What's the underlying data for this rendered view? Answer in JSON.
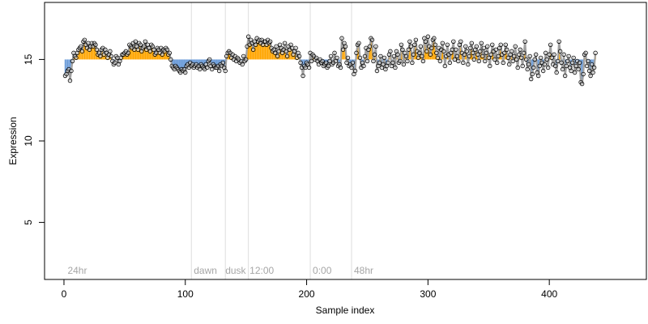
{
  "chart_data": {
    "type": "line",
    "xlabel": "Sample index",
    "ylabel": "Expression",
    "xlim": [
      -16,
      480
    ],
    "ylim": [
      1.5,
      18.5
    ],
    "xticks": [
      0,
      100,
      200,
      300,
      400
    ],
    "yticks": [
      5,
      10,
      15
    ],
    "baseline": 15,
    "grid": false,
    "legend": "none",
    "colors": {
      "above_baseline_bar": "#ffa500",
      "below_baseline_bar": "#6a9bd8",
      "line": "#a0a0a0",
      "points_stroke": "#000000",
      "points_fill": "#ffffff",
      "vline": "#dedede",
      "annotation_text": "#a6a6a6"
    },
    "vlines": [
      105,
      133,
      152,
      203,
      237
    ],
    "annotations": [
      {
        "x": 3,
        "label": "24hr"
      },
      {
        "x": 107,
        "label": "dawn"
      },
      {
        "x": 133,
        "label": "dusk"
      },
      {
        "x": 153,
        "label": "12:00"
      },
      {
        "x": 205,
        "label": "0:00"
      },
      {
        "x": 239,
        "label": "48hr"
      }
    ],
    "series": [
      {
        "values": [
          14.0,
          14.1,
          14.3,
          14.4,
          13.7,
          14.3,
          14.9,
          15.4,
          15.2,
          15.1,
          15.4,
          15.6,
          15.7,
          15.8,
          15.5,
          16.1,
          16.2,
          15.9,
          15.7,
          16.0,
          15.6,
          15.8,
          16.0,
          15.8,
          16.0,
          15.9,
          15.6,
          15.3,
          15.4,
          15.2,
          15.6,
          15.7,
          15.3,
          15.6,
          15.4,
          15.1,
          15.3,
          15.5,
          15.2,
          14.9,
          14.7,
          14.8,
          15.2,
          15.1,
          14.7,
          14.9,
          15.1,
          15.3,
          15.3,
          15.4,
          15.5,
          15.3,
          15.4,
          15.9,
          15.8,
          15.7,
          16.0,
          15.6,
          16.1,
          15.8,
          15.6,
          16.0,
          15.9,
          15.5,
          15.7,
          15.8,
          16.1,
          15.6,
          15.9,
          15.7,
          15.5,
          15.9,
          15.8,
          15.6,
          15.3,
          15.4,
          15.7,
          15.6,
          15.4,
          15.7,
          15.3,
          15.6,
          15.5,
          15.7,
          15.6,
          15.3,
          15.4,
          15.0,
          14.6,
          14.5,
          14.4,
          14.6,
          14.5,
          14.4,
          14.3,
          14.2,
          14.4,
          14.3,
          14.4,
          14.2,
          14.6,
          14.7,
          14.5,
          14.8,
          14.6,
          14.7,
          14.5,
          14.6,
          14.7,
          14.5,
          14.6,
          14.4,
          14.7,
          14.6,
          14.5,
          14.4,
          14.7,
          14.5,
          14.9,
          15.0,
          14.6,
          14.4,
          14.7,
          14.6,
          14.5,
          14.5,
          14.6,
          14.3,
          14.7,
          14.6,
          14.8,
          14.5,
          14.3,
          15.2,
          15.4,
          15.5,
          15.4,
          15.1,
          15.3,
          15.0,
          15.2,
          14.9,
          15.1,
          15.0,
          14.8,
          14.9,
          14.7,
          15.2,
          14.9,
          15.0,
          15.8,
          16.4,
          15.9,
          16.2,
          16.0,
          15.6,
          16.1,
          15.9,
          16.3,
          16.1,
          16.2,
          16.0,
          16.2,
          15.9,
          16.1,
          16.1,
          15.9,
          16.2,
          16.0,
          16.1,
          15.7,
          15.5,
          15.6,
          15.4,
          15.8,
          15.2,
          15.5,
          15.9,
          15.7,
          15.4,
          15.6,
          16.0,
          15.5,
          15.2,
          15.8,
          15.6,
          15.9,
          15.7,
          15.3,
          15.5,
          15.7,
          15.1,
          15.4,
          15.2,
          14.8,
          14.5,
          14.0,
          14.6,
          14.5,
          14.8,
          14.7,
          14.5,
          15.4,
          14.9,
          15.3,
          15.2,
          15.0,
          15.1,
          14.9,
          14.7,
          15.0,
          14.8,
          14.9,
          14.6,
          14.7,
          14.8,
          14.5,
          14.6,
          14.9,
          15.2,
          14.7,
          14.8,
          15.4,
          14.9,
          15.1,
          14.6,
          14.7,
          14.5,
          16.3,
          15.6,
          16.0,
          15.8,
          14.8,
          15.1,
          14.6,
          14.7,
          14.5,
          14.8,
          14.1,
          14.3,
          15.4,
          15.9,
          16.0,
          15.1,
          14.5,
          14.8,
          14.6,
          15.2,
          15.7,
          14.9,
          15.6,
          15.8,
          16.3,
          16.2,
          14.9,
          15.3,
          15.8,
          14.3,
          14.6,
          14.8,
          15.2,
          14.5,
          14.7,
          15.1,
          14.4,
          14.6,
          14.8,
          15.3,
          15.5,
          14.6,
          14.8,
          15.2,
          14.5,
          15.5,
          15.3,
          14.8,
          14.9,
          15.9,
          15.6,
          14.7,
          15.4,
          15.2,
          14.9,
          15.6,
          16.1,
          15.8,
          14.8,
          15.3,
          15.9,
          16.2,
          15.5,
          15.1,
          15.4,
          15.8,
          15.2,
          14.9,
          16.3,
          16.1,
          15.5,
          16.4,
          15.8,
          15.3,
          15.7,
          16.2,
          16.3,
          15.9,
          15.4,
          15.1,
          15.7,
          14.9,
          15.6,
          16.0,
          15.5,
          14.6,
          15.2,
          15.9,
          15.3,
          14.8,
          15.4,
          15.6,
          16.1,
          15.0,
          15.6,
          15.2,
          14.9,
          15.9,
          16.1,
          15.4,
          14.8,
          15.3,
          15.8,
          15.5,
          14.7,
          15.2,
          15.7,
          16.0,
          15.4,
          15.0,
          15.6,
          15.8,
          15.3,
          14.9,
          15.5,
          16.0,
          15.2,
          15.7,
          14.9,
          15.4,
          15.8,
          15.1,
          14.6,
          15.3,
          15.9,
          15.5,
          15.0,
          15.6,
          14.8,
          15.2,
          15.7,
          15.9,
          15.3,
          14.8,
          15.4,
          15.9,
          15.6,
          15.1,
          14.7,
          15.3,
          15.5,
          14.9,
          15.2,
          15.8,
          15.0,
          14.5,
          15.3,
          15.6,
          15.1,
          14.6,
          15.4,
          16.1,
          15.0,
          14.4,
          14.7,
          15.2,
          13.8,
          14.1,
          14.5,
          15.0,
          15.3,
          14.2,
          14.0,
          14.6,
          15.1,
          14.8,
          14.3,
          14.7,
          15.4,
          15.0,
          14.5,
          15.3,
          15.9,
          15.1,
          14.7,
          15.3,
          14.6,
          14.2,
          14.9,
          16.1,
          15.5,
          14.8,
          14.4,
          15.3,
          14.0,
          14.6,
          14.9,
          15.2,
          14.5,
          14.3,
          14.8,
          15.1,
          14.2,
          14.6,
          14.9,
          14.4,
          14.8,
          13.6,
          13.5,
          14.1,
          15.3,
          15.4,
          14.6,
          14.9,
          14.3,
          14.0,
          14.7,
          14.2,
          14.5,
          15.4
        ]
      }
    ]
  }
}
